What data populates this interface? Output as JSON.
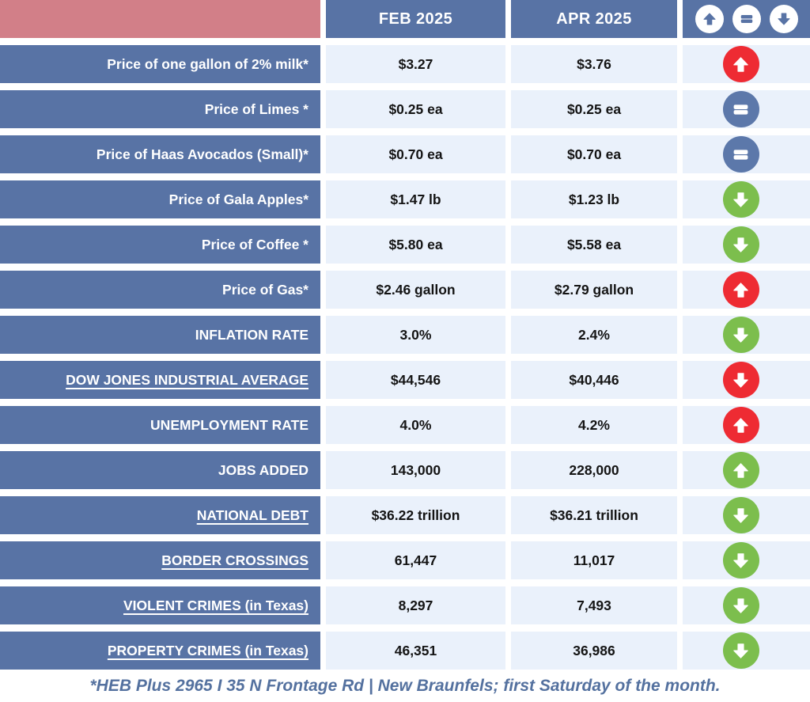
{
  "header": {
    "columns": {
      "feb": "FEB 2025",
      "apr": "APR 2025"
    }
  },
  "legend": {
    "items": [
      "up-arrow",
      "equals",
      "down-arrow"
    ],
    "meanings": [
      "increase",
      "no-change",
      "decrease"
    ]
  },
  "chart_data": {
    "type": "table",
    "columns": {
      "metric": "",
      "feb": "FEB 2025",
      "apr": "APR 2025",
      "change": "change-indicator"
    },
    "rows": [
      {
        "label": "Price of one gallon of 2% milk*",
        "underline": false,
        "feb": "$3.27",
        "apr": "$3.76",
        "change": "up",
        "change_color": "red"
      },
      {
        "label": "Price of Limes *",
        "underline": false,
        "feb": "$0.25 ea",
        "apr": "$0.25 ea",
        "change": "same",
        "change_color": "neutral"
      },
      {
        "label": "Price of Haas Avocados (Small)*",
        "underline": false,
        "feb": "$0.70 ea",
        "apr": "$0.70 ea",
        "change": "same",
        "change_color": "neutral"
      },
      {
        "label": "Price of Gala Apples*",
        "underline": false,
        "feb": "$1.47 lb",
        "apr": "$1.23 lb",
        "change": "down",
        "change_color": "green"
      },
      {
        "label": "Price of Coffee *",
        "underline": false,
        "feb": "$5.80 ea",
        "apr": "$5.58 ea",
        "change": "down",
        "change_color": "green"
      },
      {
        "label": "Price of Gas*",
        "underline": false,
        "feb": "$2.46 gallon",
        "apr": "$2.79 gallon",
        "change": "up",
        "change_color": "red"
      },
      {
        "label": "INFLATION RATE",
        "underline": false,
        "feb": "3.0%",
        "apr": "2.4%",
        "change": "down",
        "change_color": "green"
      },
      {
        "label": "DOW JONES INDUSTRIAL AVERAGE",
        "underline": true,
        "feb": "$44,546",
        "apr": "$40,446",
        "change": "down",
        "change_color": "red"
      },
      {
        "label": "UNEMPLOYMENT RATE",
        "underline": false,
        "feb": "4.0%",
        "apr": "4.2%",
        "change": "up",
        "change_color": "red"
      },
      {
        "label": "JOBS ADDED",
        "underline": false,
        "feb": "143,000",
        "apr": "228,000",
        "change": "up",
        "change_color": "green"
      },
      {
        "label": "NATIONAL DEBT",
        "underline": true,
        "feb": "$36.22 trillion",
        "apr": "$36.21 trillion",
        "change": "down",
        "change_color": "green"
      },
      {
        "label": "BORDER CROSSINGS",
        "underline": true,
        "feb": "61,447",
        "apr": "11,017",
        "change": "down",
        "change_color": "green"
      },
      {
        "label": "VIOLENT CRIMES (in Texas)",
        "underline": true,
        "feb": "8,297",
        "apr": "7,493",
        "change": "down",
        "change_color": "green"
      },
      {
        "label": "PROPERTY CRIMES (in Texas)",
        "underline": true,
        "feb": "46,351",
        "apr": "36,986",
        "change": "down",
        "change_color": "green"
      }
    ],
    "footnote": "*HEB Plus 2965 I 35 N Frontage Rd | New Braunfels; first Saturday of the month."
  },
  "colors": {
    "slate": "#5873A5",
    "pink": "#D27F88",
    "cell": "#EAF1FB",
    "red": "#EE2B33",
    "green": "#7CBE4D",
    "neutral": "#5C78AA",
    "footer": "#54719F"
  }
}
